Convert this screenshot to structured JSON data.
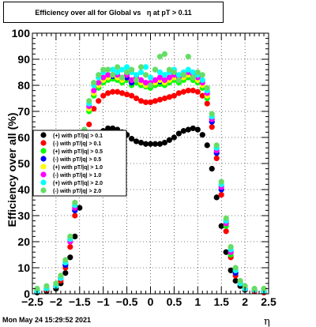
{
  "title": "Efficiency over all for Global vs   η at pT > 0.11",
  "timestamp": "Mon May 24 15:29:52 2021",
  "chart_data": {
    "type": "scatter",
    "xlabel": "η",
    "ylabel": "Efficiency over all (%)",
    "xlim": [
      -2.5,
      2.5
    ],
    "ylim": [
      0,
      100
    ],
    "xticks": [
      "−2.5",
      "−2",
      "−1.5",
      "−1",
      "−0.5",
      "0",
      "0.5",
      "1",
      "1.5",
      "2",
      "2.5"
    ],
    "yticks": [
      "0",
      "10",
      "20",
      "30",
      "40",
      "50",
      "60",
      "70",
      "80",
      "90",
      "100"
    ],
    "grid": true,
    "legend_position": "left-middle",
    "series": [
      {
        "name": "(+) with pT/|q| > 0.1",
        "color": "#000000",
        "x": [
          -2.4,
          -2.2,
          -2.0,
          -1.9,
          -1.8,
          -1.7,
          -1.6,
          -1.5,
          -1.4,
          -1.3,
          -1.2,
          -1.1,
          -1.0,
          -0.9,
          -0.8,
          -0.7,
          -0.6,
          -0.5,
          -0.4,
          -0.3,
          -0.2,
          -0.1,
          0.0,
          0.1,
          0.2,
          0.3,
          0.4,
          0.5,
          0.6,
          0.7,
          0.8,
          0.9,
          1.0,
          1.1,
          1.2,
          1.3,
          1.4,
          1.5,
          1.6,
          1.7,
          1.8,
          1.9,
          2.0,
          2.2,
          2.4
        ],
        "y": [
          0.5,
          1,
          2,
          4,
          8,
          14,
          22,
          33,
          45,
          54,
          59,
          61,
          62.5,
          63.5,
          63.5,
          63,
          62,
          61,
          59.5,
          58.5,
          58,
          57.5,
          57.5,
          57.5,
          57.5,
          58,
          59,
          60,
          61.5,
          62.5,
          63,
          63.5,
          63,
          61,
          57,
          48,
          37,
          26,
          16,
          9,
          5,
          3,
          1.5,
          1,
          0.5
        ]
      },
      {
        "name": "(-) with pT/|q| > 0.1",
        "color": "#ff0000",
        "x": [
          -2.4,
          -2.2,
          -2.0,
          -1.9,
          -1.8,
          -1.7,
          -1.6,
          -1.5,
          -1.4,
          -1.3,
          -1.2,
          -1.1,
          -1.0,
          -0.9,
          -0.8,
          -0.7,
          -0.6,
          -0.5,
          -0.4,
          -0.3,
          -0.2,
          -0.1,
          0.0,
          0.1,
          0.2,
          0.3,
          0.4,
          0.5,
          0.6,
          0.7,
          0.8,
          0.9,
          1.0,
          1.1,
          1.2,
          1.3,
          1.4,
          1.5,
          1.6,
          1.7,
          1.8,
          1.9,
          2.0,
          2.2,
          2.4
        ],
        "y": [
          1,
          1.5,
          3,
          5,
          10,
          18,
          30,
          42,
          55,
          65,
          71,
          74,
          76,
          77,
          77.5,
          77.5,
          77,
          76.5,
          76,
          75,
          74,
          73.5,
          73.5,
          74,
          74.5,
          75,
          75.5,
          76,
          77,
          77.5,
          78,
          78,
          77.5,
          76,
          73,
          64,
          52,
          38,
          24,
          14,
          7,
          4,
          2,
          1,
          0.5
        ]
      },
      {
        "name": "(+) with pT/|q| > 0.5",
        "color": "#00ff00",
        "x": [
          -2.4,
          -2.2,
          -2.0,
          -1.9,
          -1.8,
          -1.7,
          -1.6,
          -1.5,
          -1.4,
          -1.3,
          -1.2,
          -1.1,
          -1.0,
          -0.9,
          -0.8,
          -0.7,
          -0.6,
          -0.5,
          -0.4,
          -0.3,
          -0.2,
          -0.1,
          0.0,
          0.1,
          0.2,
          0.3,
          0.4,
          0.5,
          0.6,
          0.7,
          0.8,
          0.9,
          1.0,
          1.1,
          1.2,
          1.3,
          1.4,
          1.5,
          1.6,
          1.7,
          1.8,
          1.9,
          2.0,
          2.2,
          2.4
        ],
        "y": [
          1,
          2,
          3,
          6,
          11,
          20,
          32,
          46,
          60,
          70,
          76,
          79,
          81,
          82,
          82.5,
          82,
          81,
          82,
          80,
          81,
          80,
          79.5,
          79,
          80,
          80.5,
          80,
          81,
          82,
          81,
          82,
          83,
          82,
          81,
          79,
          75,
          66,
          54,
          40,
          26,
          15,
          8,
          4,
          2,
          1.5,
          1
        ]
      },
      {
        "name": "(-) with pT/|q| > 0.5",
        "color": "#0000ff",
        "x": [
          -2.4,
          -2.2,
          -2.0,
          -1.9,
          -1.8,
          -1.7,
          -1.6,
          -1.5,
          -1.4,
          -1.3,
          -1.2,
          -1.1,
          -1.0,
          -0.9,
          -0.8,
          -0.7,
          -0.6,
          -0.5,
          -0.4,
          -0.3,
          -0.2,
          -0.1,
          0.0,
          0.1,
          0.2,
          0.3,
          0.4,
          0.5,
          0.6,
          0.7,
          0.8,
          0.9,
          1.0,
          1.1,
          1.2,
          1.3,
          1.4,
          1.5,
          1.6,
          1.7,
          1.8,
          1.9,
          2.0,
          2.2,
          2.4
        ],
        "y": [
          1,
          2,
          3,
          6,
          11,
          20,
          32,
          46,
          60,
          71,
          77,
          80,
          82,
          83,
          83.5,
          83,
          82,
          83,
          81,
          82,
          81,
          80.5,
          80,
          81,
          81.5,
          81,
          82,
          83,
          82,
          83,
          84,
          83,
          82,
          80,
          76,
          66,
          54,
          40,
          28,
          16,
          8,
          4,
          2,
          1.5,
          1
        ]
      },
      {
        "name": "(+) with pT/|q| > 1.0",
        "color": "#ffff00",
        "x": [
          -2.4,
          -2.2,
          -2.0,
          -1.9,
          -1.8,
          -1.7,
          -1.6,
          -1.5,
          -1.4,
          -1.3,
          -1.2,
          -1.1,
          -1.0,
          -0.9,
          -0.8,
          -0.7,
          -0.6,
          -0.5,
          -0.4,
          -0.3,
          -0.2,
          -0.1,
          0.0,
          0.1,
          0.2,
          0.3,
          0.4,
          0.5,
          0.6,
          0.7,
          0.8,
          0.9,
          1.0,
          1.1,
          1.2,
          1.3,
          1.4,
          1.5,
          1.6,
          1.7,
          1.8,
          1.9,
          2.0,
          2.2,
          2.4
        ],
        "y": [
          1,
          2,
          3,
          6,
          12,
          20,
          33,
          47,
          61,
          71,
          77,
          80,
          82,
          83,
          84,
          83,
          82,
          84,
          82,
          82,
          81,
          80,
          80,
          81,
          82,
          81,
          82,
          83,
          82,
          83,
          84,
          83,
          82,
          80,
          76,
          67,
          55,
          41,
          27,
          16,
          9,
          4,
          2,
          1.5,
          1
        ]
      },
      {
        "name": "(-) with pT/|q| > 1.0",
        "color": "#ff00ff",
        "x": [
          -2.4,
          -2.2,
          -2.0,
          -1.9,
          -1.8,
          -1.7,
          -1.6,
          -1.5,
          -1.4,
          -1.3,
          -1.2,
          -1.1,
          -1.0,
          -0.9,
          -0.8,
          -0.7,
          -0.6,
          -0.5,
          -0.4,
          -0.3,
          -0.2,
          -0.1,
          0.0,
          0.1,
          0.2,
          0.3,
          0.4,
          0.5,
          0.6,
          0.7,
          0.8,
          0.9,
          1.0,
          1.1,
          1.2,
          1.3,
          1.4,
          1.5,
          1.6,
          1.7,
          1.8,
          1.9,
          2.0,
          2.2,
          2.4
        ],
        "y": [
          1,
          2,
          3,
          6,
          12,
          20,
          33,
          47,
          61,
          72,
          78,
          81,
          83,
          84,
          84,
          84,
          83,
          84,
          82,
          83,
          82,
          81,
          81,
          82,
          83,
          82,
          83,
          84,
          83,
          84,
          85,
          84,
          83,
          81,
          77,
          67,
          55,
          41,
          27,
          16,
          9,
          4,
          2,
          1.5,
          1
        ]
      },
      {
        "name": "(+) with pT/|q| > 2.0",
        "color": "#00ffff",
        "x": [
          -2.4,
          -2.2,
          -2.0,
          -1.9,
          -1.8,
          -1.7,
          -1.6,
          -1.5,
          -1.4,
          -1.3,
          -1.2,
          -1.1,
          -1.0,
          -0.9,
          -0.8,
          -0.7,
          -0.6,
          -0.5,
          -0.4,
          -0.3,
          -0.2,
          -0.1,
          0.0,
          0.1,
          0.2,
          0.3,
          0.4,
          0.5,
          0.6,
          0.7,
          0.8,
          0.9,
          1.0,
          1.1,
          1.2,
          1.3,
          1.4,
          1.5,
          1.6,
          1.7,
          1.8,
          1.9,
          2.0,
          2.2,
          2.4
        ],
        "y": [
          1,
          2,
          3,
          6,
          12,
          21,
          34,
          48,
          62,
          73,
          80,
          83,
          85,
          86,
          86,
          85,
          86,
          87,
          85,
          84,
          85,
          87,
          83,
          86,
          85,
          84,
          85,
          86,
          84,
          85,
          86,
          85,
          84,
          82,
          78,
          68,
          56,
          42,
          28,
          17,
          9,
          4,
          2,
          1.5,
          1
        ]
      },
      {
        "name": "(-) with pT/|q| > 2.0",
        "color": "#66dd66",
        "x": [
          -2.4,
          -2.2,
          -2.0,
          -1.9,
          -1.8,
          -1.7,
          -1.6,
          -1.5,
          -1.4,
          -1.3,
          -1.2,
          -1.1,
          -1.0,
          -0.9,
          -0.8,
          -0.7,
          -0.6,
          -0.5,
          -0.4,
          -0.3,
          -0.2,
          -0.1,
          0.0,
          0.1,
          0.2,
          0.3,
          0.4,
          0.5,
          0.6,
          0.7,
          0.8,
          0.9,
          1.0,
          1.1,
          1.2,
          1.3,
          1.4,
          1.5,
          1.6,
          1.7,
          1.8,
          1.9,
          2.0,
          2.2,
          2.4
        ],
        "y": [
          2,
          3,
          4,
          7,
          13,
          22,
          35,
          49,
          63,
          74,
          81,
          84,
          86,
          86,
          84,
          87,
          83,
          85,
          86,
          82,
          87,
          84,
          80,
          86,
          91,
          92,
          86,
          85,
          82,
          84,
          91,
          83,
          85,
          84,
          79,
          69,
          57,
          43,
          29,
          18,
          10,
          5,
          3,
          2,
          2
        ]
      }
    ]
  }
}
